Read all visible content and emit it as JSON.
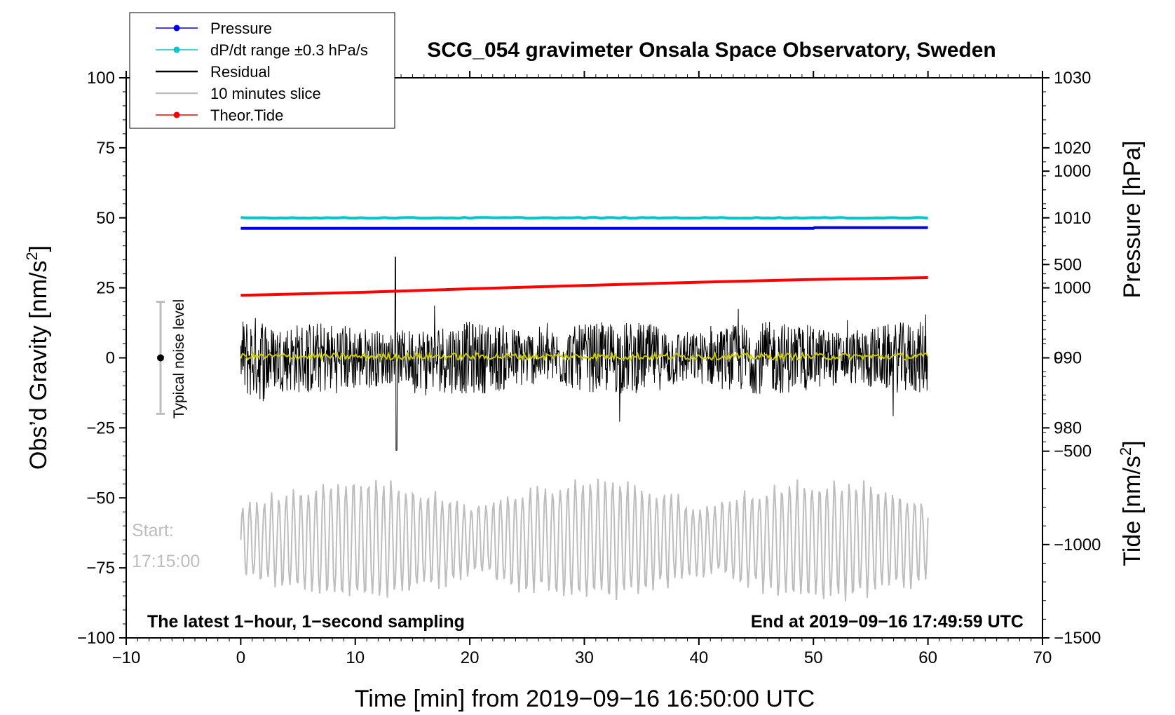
{
  "chart_data": {
    "type": "line",
    "title": "SCG_054 gravimeter Onsala Space Observatory, Sweden",
    "xlabel": "Time [min] from 2019−09−16 16:50:00 UTC",
    "ylabel": "Obs’d Gravity [nm/s",
    "ylabel_sup": "2",
    "ylabel_close": "]",
    "y2label": "Pressure [hPa]",
    "y3label": "Tide [nm/s",
    "y3label_sup": "2",
    "y3label_close": "]",
    "xlim": [
      -10,
      70
    ],
    "ylim": [
      -100,
      100
    ],
    "y2lim": [
      950,
      1030
    ],
    "y3lim": [
      -1500,
      1500
    ],
    "xticks": [
      -10,
      0,
      10,
      20,
      30,
      40,
      50,
      60,
      70
    ],
    "xtick_labels": [
      "−10",
      "0",
      "10",
      "20",
      "30",
      "40",
      "50",
      "60",
      "70"
    ],
    "yticks": [
      -100,
      -75,
      -50,
      -25,
      0,
      25,
      50,
      75,
      100
    ],
    "ytick_labels": [
      "−100",
      "−75",
      "−50",
      "−25",
      "0",
      "25",
      "50",
      "75",
      "100"
    ],
    "y2ticks": [
      980,
      990,
      1000,
      1010,
      1020,
      1030
    ],
    "y2tick_labels": [
      "980",
      "990",
      "1000",
      "1010",
      "1020",
      "1030"
    ],
    "y3ticks": [
      -1500,
      -1000,
      -500,
      0,
      500,
      1000
    ],
    "y3tick_labels": [
      "−1500",
      "−1000",
      "−500",
      "0",
      "500",
      "1000"
    ],
    "annotations": {
      "bottom_left": "The latest 1−hour, 1−second sampling",
      "bottom_right": "End at 2019−09−16 17:49:59 UTC",
      "start_label": "Start:",
      "start_time": "17:15:00",
      "noise_label": "Typical noise level"
    },
    "noise_bar": {
      "x": -7,
      "center": 0,
      "low": -20,
      "high": 20
    },
    "legend": [
      {
        "label": "Pressure",
        "color": "#0000ee",
        "marker": true
      },
      {
        "label": "dP/dt range ±0.3 hPa/s",
        "color": "#00c8c8",
        "marker": true
      },
      {
        "label": "Residual",
        "color": "#000000",
        "marker": false
      },
      {
        "label": "10 minutes slice",
        "color": "#bdbdbd",
        "marker": false
      },
      {
        "label": "Theor.Tide",
        "color": "#ff0000",
        "marker": true
      }
    ],
    "series": [
      {
        "name": "Pressure",
        "axis": "y2",
        "x": [
          0,
          50,
          50.1,
          60
        ],
        "values": [
          1008.5,
          1008.5,
          1008.6,
          1008.6
        ],
        "color": "#0000ee"
      },
      {
        "name": "dP/dt range ±0.3 hPa/s",
        "axis": "y1",
        "x": [
          0,
          60
        ],
        "values": [
          50,
          50
        ],
        "color": "#00c8c8"
      },
      {
        "name": "Theor.Tide",
        "axis": "y3",
        "x": [
          0,
          10,
          20,
          30,
          40,
          50,
          60
        ],
        "values": [
          335,
          350,
          370,
          388,
          405,
          420,
          430
        ],
        "color": "#ff0000"
      },
      {
        "name": "Residual",
        "axis": "y1",
        "x_range": [
          0,
          60
        ],
        "amplitude_nm_s2": [
          -33,
          36
        ],
        "color": "#000000",
        "note": "1-second sampled residual, noise envelope approx ±12 nm/s2"
      },
      {
        "name": "Residual smoothed",
        "axis": "y1",
        "x_range": [
          0,
          60
        ],
        "value_approx": 0.5,
        "color": "#cccc00"
      },
      {
        "name": "10 minutes slice",
        "axis": "y1",
        "x_range": [
          0,
          60
        ],
        "center": -65,
        "amplitude_range": [
          -90,
          -40
        ],
        "color": "#bdbdbd"
      }
    ],
    "colors": {
      "smoothed": "#cccc00",
      "slice": "#bdbdbd"
    }
  }
}
